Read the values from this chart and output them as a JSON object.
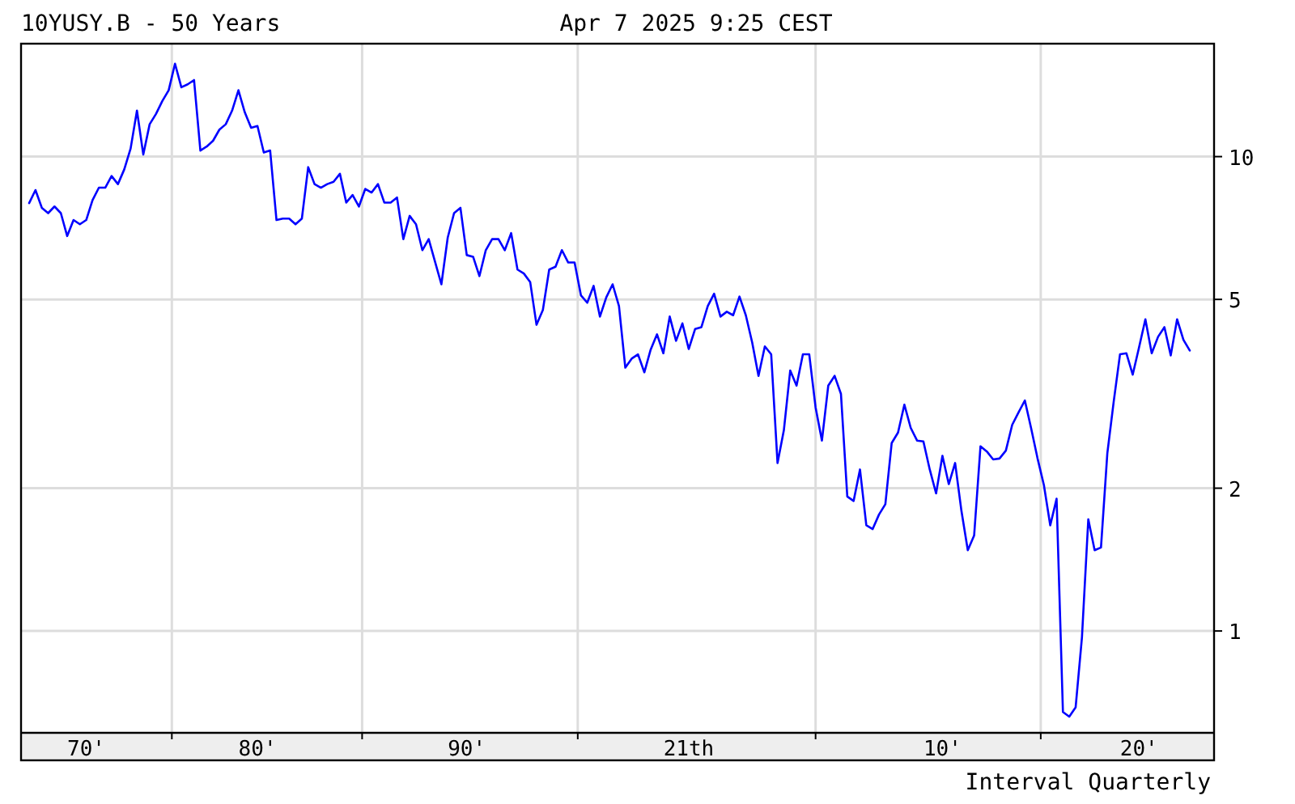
{
  "chart_data": {
    "type": "line",
    "title": "10YUSY.B - 50 Years",
    "subtitle": "Apr 7 2025 9:25 CEST",
    "annotations": [
      "Interval Quarterly"
    ],
    "log": true,
    "grid": true,
    "marker": "none",
    "line_style": "solid",
    "ylim": [
      0.61,
      17.3
    ],
    "yticks": [
      1,
      2,
      5,
      10
    ],
    "categories": [
      null,
      null,
      null,
      null,
      null,
      null,
      null,
      null,
      null,
      "70'",
      null,
      null,
      null,
      null,
      null,
      null,
      null,
      null,
      null,
      null,
      null,
      null,
      null,
      null,
      null,
      null,
      null,
      null,
      null,
      null,
      null,
      null,
      null,
      null,
      null,
      null,
      "80'",
      null,
      null,
      null,
      null,
      null,
      null,
      null,
      null,
      null,
      null,
      null,
      null,
      null,
      null,
      null,
      null,
      null,
      null,
      null,
      null,
      null,
      null,
      null,
      null,
      null,
      null,
      null,
      null,
      null,
      null,
      null,
      null,
      "90'",
      null,
      null,
      null,
      null,
      null,
      null,
      null,
      null,
      null,
      null,
      null,
      null,
      null,
      null,
      null,
      null,
      null,
      null,
      null,
      null,
      null,
      null,
      null,
      null,
      null,
      null,
      null,
      null,
      null,
      null,
      null,
      null,
      null,
      null,
      "21th",
      null,
      null,
      null,
      null,
      null,
      null,
      null,
      null,
      null,
      null,
      null,
      null,
      null,
      null,
      null,
      null,
      null,
      null,
      null,
      null,
      null,
      null,
      null,
      null,
      null,
      null,
      null,
      null,
      null,
      null,
      null,
      null,
      null,
      null,
      null,
      null,
      null,
      null,
      null,
      "10'",
      null,
      null,
      null,
      null,
      null,
      null,
      null,
      null,
      null,
      null,
      null,
      null,
      null,
      null,
      null,
      null,
      null,
      null,
      null,
      null,
      null,
      null,
      null,
      null,
      null,
      null,
      null,
      null,
      null,
      null,
      "20'",
      null,
      null,
      null,
      null,
      null,
      null,
      null,
      null
    ],
    "series": [
      {
        "color": "#0000ff",
        "values": [
          7.98,
          8.5,
          7.8,
          7.6,
          7.85,
          7.6,
          6.8,
          7.35,
          7.2,
          7.35,
          8.1,
          8.6,
          8.6,
          9.1,
          8.75,
          9.4,
          10.4,
          12.5,
          10.1,
          11.7,
          12.3,
          13.1,
          13.8,
          15.7,
          14.0,
          14.2,
          14.5,
          10.3,
          10.5,
          10.8,
          11.4,
          11.7,
          12.5,
          13.8,
          12.4,
          11.5,
          11.6,
          10.2,
          10.3,
          7.35,
          7.4,
          7.4,
          7.2,
          7.4,
          9.5,
          8.75,
          8.6,
          8.75,
          8.85,
          9.2,
          8.0,
          8.3,
          7.85,
          8.55,
          8.4,
          8.75,
          8.0,
          8.0,
          8.2,
          6.7,
          7.5,
          7.2,
          6.35,
          6.7,
          6.0,
          5.38,
          6.75,
          7.6,
          7.8,
          6.2,
          6.15,
          5.6,
          6.35,
          6.7,
          6.7,
          6.35,
          6.9,
          5.78,
          5.67,
          5.44,
          4.42,
          4.75,
          5.78,
          5.86,
          6.35,
          5.98,
          5.98,
          5.1,
          4.92,
          5.34,
          4.6,
          5.05,
          5.38,
          4.84,
          3.59,
          3.75,
          3.83,
          3.51,
          3.92,
          4.22,
          3.85,
          4.6,
          4.09,
          4.45,
          3.93,
          4.33,
          4.37,
          4.84,
          5.14,
          4.6,
          4.71,
          4.63,
          5.07,
          4.63,
          4.06,
          3.45,
          3.98,
          3.83,
          2.26,
          2.65,
          3.54,
          3.29,
          3.83,
          3.83,
          2.96,
          2.52,
          3.29,
          3.45,
          3.16,
          1.92,
          1.88,
          2.19,
          1.67,
          1.64,
          1.76,
          1.85,
          2.49,
          2.62,
          3.0,
          2.68,
          2.52,
          2.51,
          2.19,
          1.95,
          2.34,
          2.04,
          2.26,
          1.79,
          1.48,
          1.59,
          2.45,
          2.39,
          2.3,
          2.31,
          2.4,
          2.72,
          2.89,
          3.06,
          2.67,
          2.31,
          2.03,
          1.67,
          1.9,
          0.675,
          0.66,
          0.69,
          0.97,
          1.72,
          1.48,
          1.5,
          2.37,
          3.04,
          3.83,
          3.85,
          3.47,
          3.96,
          4.54,
          3.85,
          4.17,
          4.37,
          3.81,
          4.54,
          4.11,
          3.9
        ]
      }
    ]
  }
}
